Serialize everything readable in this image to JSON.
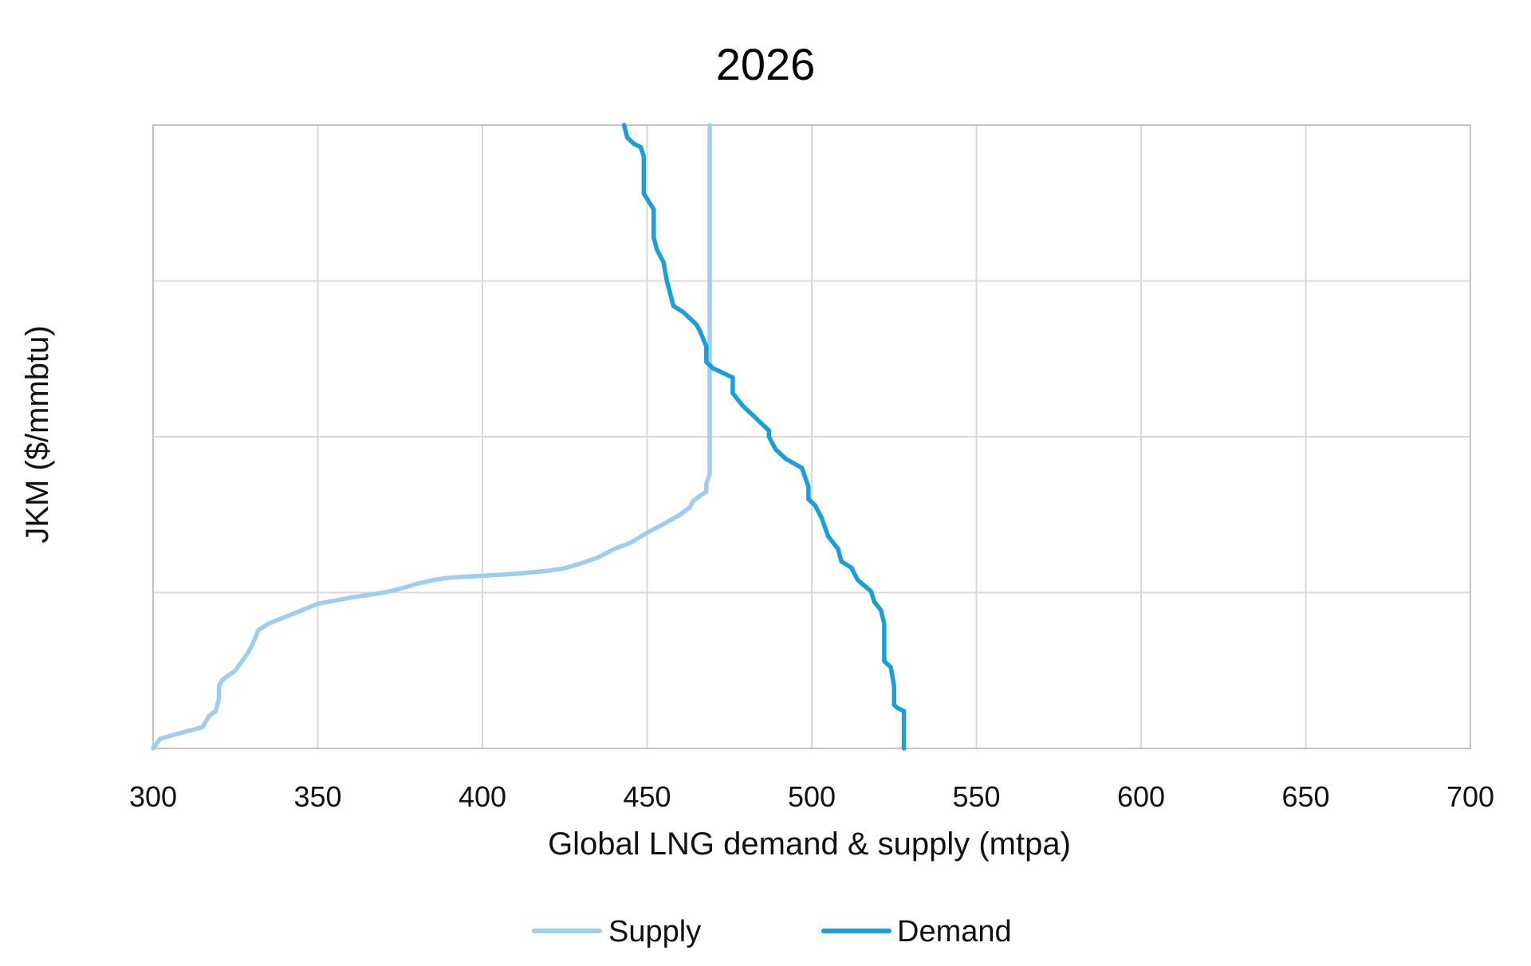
{
  "chart_data": {
    "type": "line",
    "title": "2026",
    "xlabel": "Global LNG demand & supply (mtpa)",
    "ylabel": "JKM ($/mmbtu)",
    "xlim": [
      300,
      700
    ],
    "x_ticks": [
      "300",
      "350",
      "400",
      "450",
      "500",
      "550",
      "600",
      "650",
      "700"
    ],
    "y_gridlines": 5,
    "y_tick_labels_shown": false,
    "grid": true,
    "legend_position": "bottom",
    "series": [
      {
        "name": "Supply",
        "color": "#9dcdef",
        "points": [
          [
            300,
            0.0
          ],
          [
            302,
            0.015
          ],
          [
            305,
            0.02
          ],
          [
            310,
            0.027
          ],
          [
            315,
            0.034
          ],
          [
            317,
            0.052
          ],
          [
            319,
            0.06
          ],
          [
            320,
            0.08
          ],
          [
            320,
            0.1
          ],
          [
            321,
            0.11
          ],
          [
            325,
            0.125
          ],
          [
            327,
            0.14
          ],
          [
            329,
            0.155
          ],
          [
            330,
            0.165
          ],
          [
            332,
            0.19
          ],
          [
            335,
            0.2
          ],
          [
            342,
            0.215
          ],
          [
            350,
            0.232
          ],
          [
            360,
            0.242
          ],
          [
            370,
            0.25
          ],
          [
            375,
            0.256
          ],
          [
            380,
            0.264
          ],
          [
            385,
            0.27
          ],
          [
            390,
            0.274
          ],
          [
            400,
            0.277
          ],
          [
            410,
            0.28
          ],
          [
            420,
            0.285
          ],
          [
            425,
            0.289
          ],
          [
            430,
            0.297
          ],
          [
            435,
            0.306
          ],
          [
            440,
            0.32
          ],
          [
            445,
            0.33
          ],
          [
            450,
            0.346
          ],
          [
            455,
            0.36
          ],
          [
            460,
            0.375
          ],
          [
            463,
            0.387
          ],
          [
            464,
            0.397
          ],
          [
            466,
            0.405
          ],
          [
            468,
            0.412
          ],
          [
            468,
            0.425
          ],
          [
            469,
            0.44
          ],
          [
            469,
            0.465
          ],
          [
            469,
            0.5
          ],
          [
            469,
            0.65
          ],
          [
            469,
            0.8
          ],
          [
            469,
            1.0
          ]
        ]
      },
      {
        "name": "Demand",
        "color": "#1a9fdb",
        "points": [
          [
            528,
            0.0
          ],
          [
            528,
            0.03
          ],
          [
            528,
            0.06
          ],
          [
            526,
            0.065
          ],
          [
            525,
            0.07
          ],
          [
            525,
            0.1
          ],
          [
            524,
            0.13
          ],
          [
            522,
            0.14
          ],
          [
            522,
            0.2
          ],
          [
            521,
            0.222
          ],
          [
            519,
            0.235
          ],
          [
            518,
            0.252
          ],
          [
            514,
            0.27
          ],
          [
            512,
            0.29
          ],
          [
            509,
            0.3
          ],
          [
            508,
            0.32
          ],
          [
            505,
            0.34
          ],
          [
            503,
            0.37
          ],
          [
            501,
            0.39
          ],
          [
            499,
            0.4
          ],
          [
            499,
            0.42
          ],
          [
            497,
            0.45
          ],
          [
            492,
            0.465
          ],
          [
            489,
            0.48
          ],
          [
            487,
            0.5
          ],
          [
            487,
            0.51
          ],
          [
            482,
            0.535
          ],
          [
            479,
            0.55
          ],
          [
            476,
            0.57
          ],
          [
            476,
            0.595
          ],
          [
            470,
            0.61
          ],
          [
            468,
            0.62
          ],
          [
            468,
            0.645
          ],
          [
            466,
            0.67
          ],
          [
            465,
            0.68
          ],
          [
            461,
            0.7
          ],
          [
            458,
            0.71
          ],
          [
            457,
            0.73
          ],
          [
            456,
            0.75
          ],
          [
            455,
            0.78
          ],
          [
            453,
            0.8
          ],
          [
            452,
            0.82
          ],
          [
            452,
            0.865
          ],
          [
            449,
            0.89
          ],
          [
            449,
            0.95
          ],
          [
            448,
            0.965
          ],
          [
            446,
            0.97
          ],
          [
            444,
            0.98
          ],
          [
            443,
            1.0
          ]
        ]
      }
    ]
  }
}
